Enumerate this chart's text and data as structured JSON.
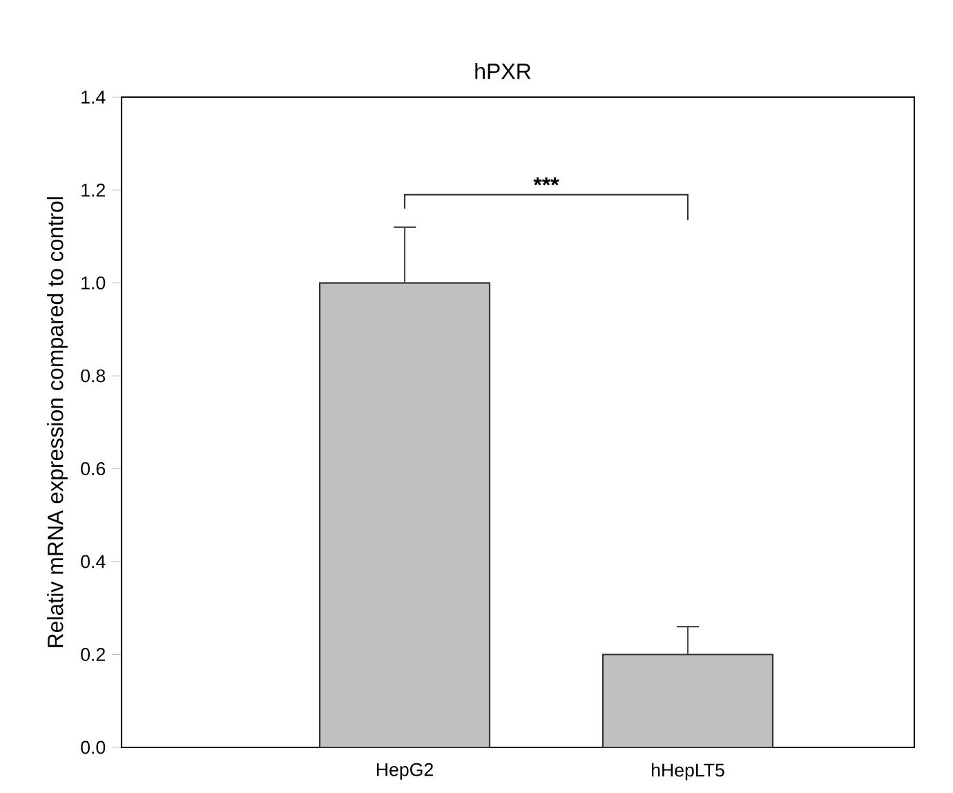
{
  "chart_data": {
    "type": "bar",
    "title": "hPXR",
    "ylabel": "Relativ mRNA expression compared to control",
    "categories": [
      "HepG2",
      "hHepLT5"
    ],
    "values": [
      1.0,
      0.2
    ],
    "errors": [
      0.12,
      0.06
    ],
    "color": "#c0c0c0",
    "ylim": [
      0,
      1.4
    ],
    "yticks": [
      {
        "value": 0,
        "label": "0.0"
      },
      {
        "value": 0.2,
        "label": "0.2"
      },
      {
        "value": 0.4,
        "label": "0.4"
      },
      {
        "value": 0.6,
        "label": "0.6"
      },
      {
        "value": 0.8,
        "label": "0.8"
      },
      {
        "value": 1.0,
        "label": "1.0"
      },
      {
        "value": 1.2,
        "label": "1.2"
      },
      {
        "value": 1.4,
        "label": "1.4"
      }
    ],
    "annotations": [
      "***"
    ]
  }
}
